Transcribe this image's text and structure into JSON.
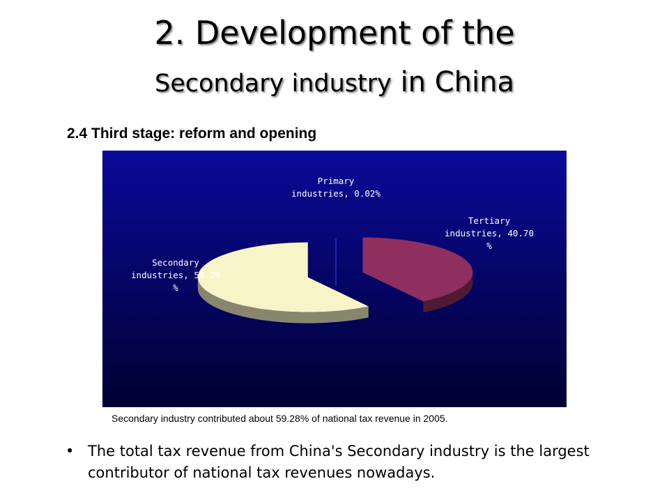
{
  "slide": {
    "title_line1": "2. Development of the",
    "title_line2_a": "Secondary industry",
    "title_line2_b": "in China",
    "subtitle": "2.4 Third stage: reform and opening",
    "caption": "Secondary industry  contributed about 59.28% of national tax revenue in 2005.",
    "bullet_symbol": "•",
    "bullet_text": "The total tax revenue from China's Secondary industry  is the largest contributor of national tax revenues nowadays."
  },
  "chart_data": {
    "type": "pie",
    "title": "",
    "slices": [
      {
        "label_lines": [
          "Primary",
          "industries, 0.02%"
        ],
        "value": 0.02,
        "color": "#2a2ec0"
      },
      {
        "label_lines": [
          "Tertiary",
          "industries, 40.70",
          "%"
        ],
        "value": 40.7,
        "color": "#8e2f5f"
      },
      {
        "label_lines": [
          "Secondary",
          "industries, 59.28",
          "%"
        ],
        "value": 59.28,
        "color": "#f7f5c8"
      }
    ],
    "background": [
      "#0a0a9a",
      "#000032"
    ]
  }
}
